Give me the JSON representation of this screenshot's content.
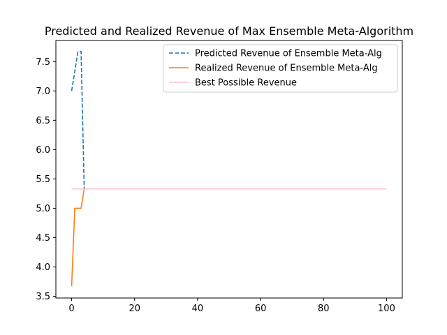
{
  "chart_data": {
    "type": "line",
    "title": "Predicted and Realized Revenue of Max Ensemble Meta-Algorithm",
    "xlabel": "",
    "ylabel": "",
    "xlim": [
      -5,
      105
    ],
    "ylim": [
      3.47,
      7.86
    ],
    "x_ticks": [
      0,
      20,
      40,
      60,
      80,
      100
    ],
    "y_ticks": [
      3.5,
      4.0,
      4.5,
      5.0,
      5.5,
      6.0,
      6.5,
      7.0,
      7.5
    ],
    "grid": false,
    "legend_position": "upper right",
    "series": [
      {
        "name": "Predicted Revenue of Ensemble Meta-Alg",
        "color": "#1f77b4",
        "dash": "dashed",
        "x": [
          0,
          1,
          2,
          3,
          4
        ],
        "y": [
          7.0,
          7.33,
          7.67,
          7.67,
          5.33
        ]
      },
      {
        "name": "Realized Revenue of Ensemble Meta-Alg",
        "color": "#ff7f0e",
        "dash": "solid",
        "x": [
          0,
          1,
          2,
          3,
          4
        ],
        "y": [
          3.67,
          5.0,
          5.0,
          5.0,
          5.33
        ]
      },
      {
        "name": "Best Possible Revenue",
        "color": "#ffc0cb",
        "dash": "solid",
        "x": [
          0,
          100
        ],
        "y": [
          5.33,
          5.33
        ]
      }
    ]
  }
}
